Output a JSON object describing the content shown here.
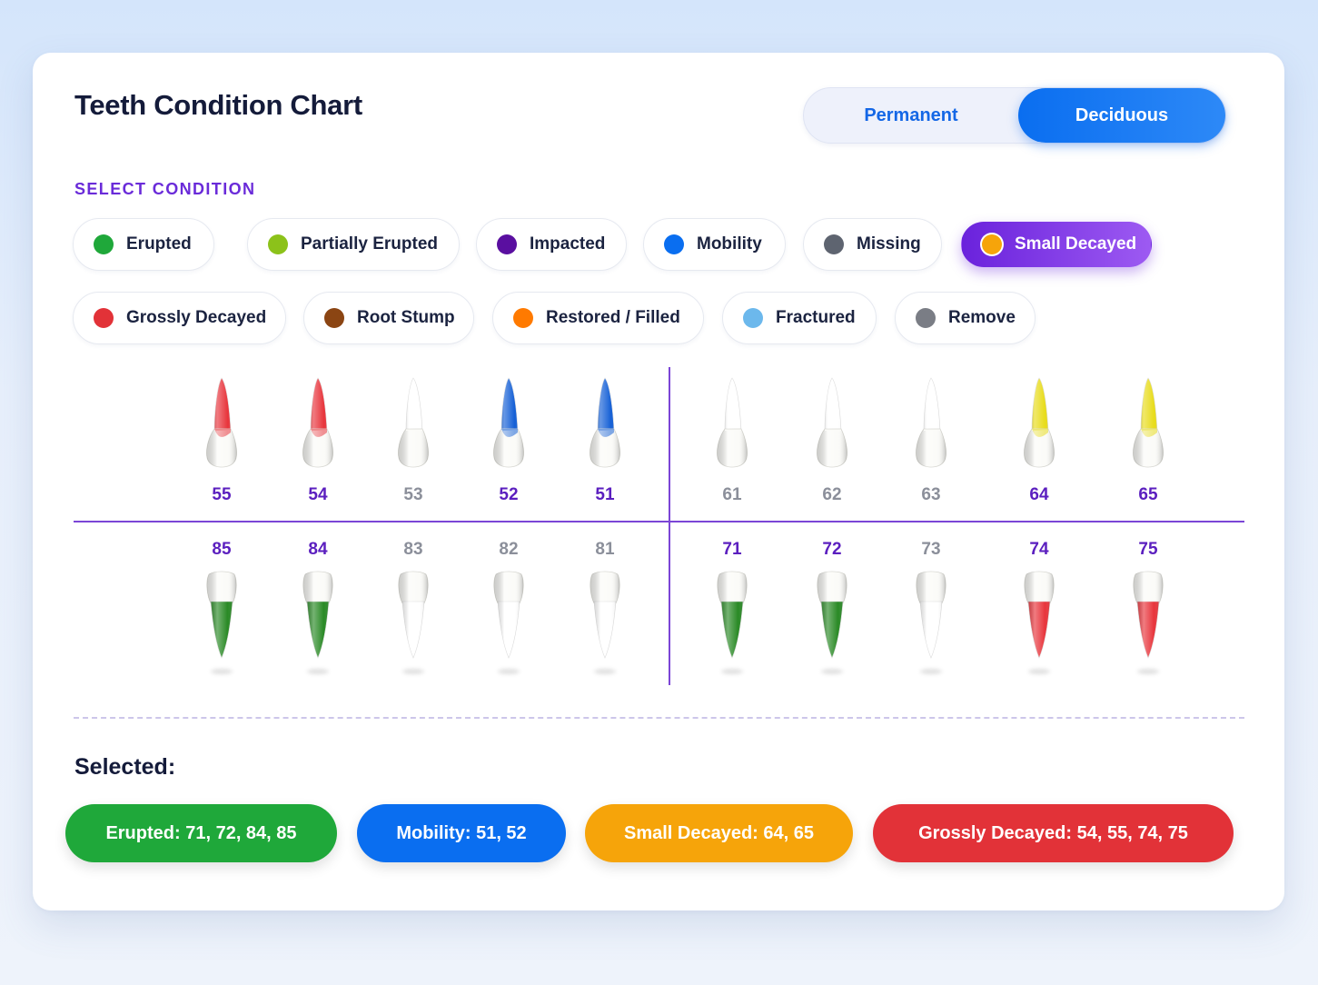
{
  "title": "Teeth Condition Chart",
  "toggle": {
    "permanent": "Permanent",
    "deciduous": "Deciduous",
    "active": "Deciduous"
  },
  "section_label": "SELECT CONDITION",
  "conditions": [
    {
      "label": "Erupted",
      "color": "#1fa83a"
    },
    {
      "label": "Partially Erupted",
      "color": "#8cc21a"
    },
    {
      "label": "Impacted",
      "color": "#5a0fa0"
    },
    {
      "label": "Mobility",
      "color": "#0a6ef0"
    },
    {
      "label": "Missing",
      "color": "#5e6470"
    },
    {
      "label": "Small Decayed",
      "color": "#f6a40a",
      "active": true
    },
    {
      "label": "Grossly Decayed",
      "color": "#e23238"
    },
    {
      "label": "Root Stump",
      "color": "#8b4513"
    },
    {
      "label": "Restored / Filled",
      "color": "#ff7a00"
    },
    {
      "label": "Fractured",
      "color": "#6cb8ec"
    },
    {
      "label": "Remove",
      "color": "#7a7d85"
    }
  ],
  "upper_teeth": [
    {
      "num": "55",
      "condition": "Grossly Decayed"
    },
    {
      "num": "54",
      "condition": "Grossly Decayed"
    },
    {
      "num": "53",
      "condition": "none"
    },
    {
      "num": "52",
      "condition": "Mobility"
    },
    {
      "num": "51",
      "condition": "Mobility"
    },
    {
      "num": "61",
      "condition": "none"
    },
    {
      "num": "62",
      "condition": "none"
    },
    {
      "num": "63",
      "condition": "none"
    },
    {
      "num": "64",
      "condition": "Small Decayed"
    },
    {
      "num": "65",
      "condition": "Small Decayed"
    }
  ],
  "lower_teeth": [
    {
      "num": "85",
      "condition": "Erupted"
    },
    {
      "num": "84",
      "condition": "Erupted"
    },
    {
      "num": "83",
      "condition": "none"
    },
    {
      "num": "82",
      "condition": "none"
    },
    {
      "num": "81",
      "condition": "none"
    },
    {
      "num": "71",
      "condition": "Erupted"
    },
    {
      "num": "72",
      "condition": "Erupted"
    },
    {
      "num": "73",
      "condition": "none"
    },
    {
      "num": "74",
      "condition": "Grossly Decayed"
    },
    {
      "num": "75",
      "condition": "Grossly Decayed"
    }
  ],
  "tooth_colors": {
    "Grossly Decayed": "#e8353c",
    "Mobility": "#1560d6",
    "Small Decayed": "#e8dc1a",
    "Erupted": "#2a8a26",
    "none": "#ffffff"
  },
  "selected_label": "Selected:",
  "selected": [
    {
      "text": "Erupted: 71, 72, 84, 85",
      "color": "#1fa83a"
    },
    {
      "text": "Mobility: 51, 52",
      "color": "#0a6ef0"
    },
    {
      "text": "Small Decayed: 64, 65",
      "color": "#f6a40a"
    },
    {
      "text": "Grossly Decayed: 54, 55, 74, 75",
      "color": "#e23238"
    }
  ]
}
